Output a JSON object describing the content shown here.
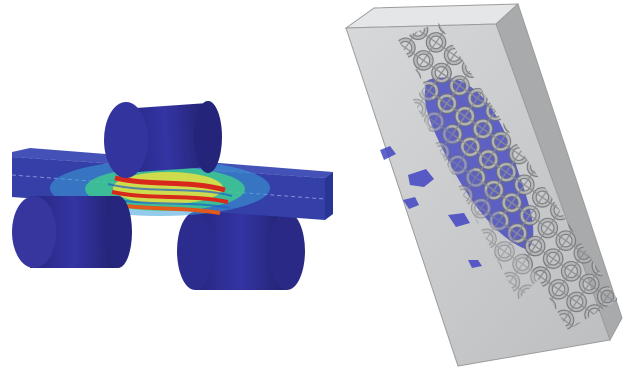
{
  "figure": {
    "panels": [
      {
        "id": "fe-bending-simulation",
        "subject": "three-point-bending-stress-contour",
        "colors": {
          "roller": "#2e2e92",
          "roller_dark": "#22226e",
          "beam_base": "#3440a8",
          "low": "#3ba0d8",
          "mid": "#3fd68a",
          "high_mid": "#e8e040",
          "high": "#d8281c"
        }
      },
      {
        "id": "ct-scan-rendering",
        "subject": "lattice-in-translucent-block",
        "colors": {
          "block": "#c4c6c8",
          "block_edge": "#9a9c9e",
          "lattice": "#a8aaac",
          "lattice_shadow": "#6c6e72",
          "inclusion": "#3a3cc0"
        }
      }
    ]
  }
}
